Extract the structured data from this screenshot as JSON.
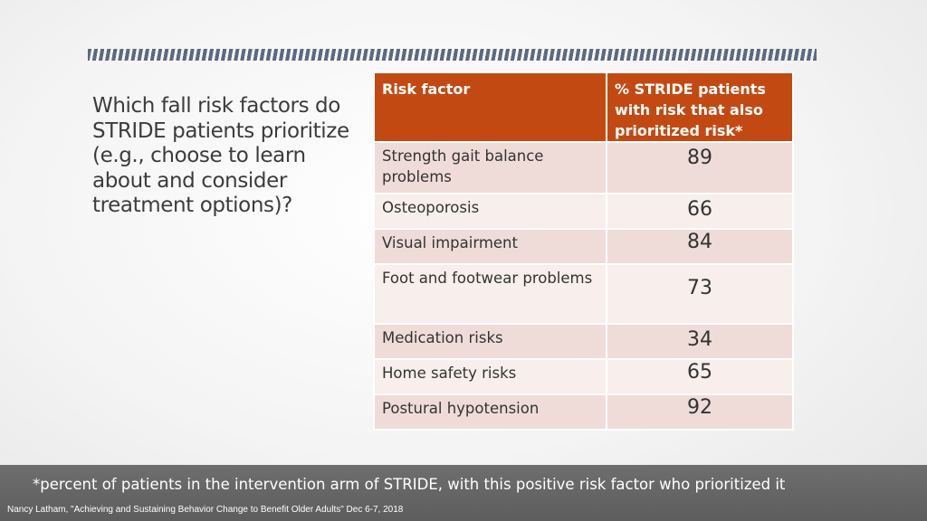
{
  "question": "Which fall risk factors do STRIDE patients prioritize (e.g., choose to learn about and consider treatment options)?",
  "table": {
    "headers": [
      "Risk factor",
      "% STRIDE patients with risk that also prioritized risk*"
    ],
    "rows": [
      {
        "factor": "Strength gait balance problems",
        "value": "89"
      },
      {
        "factor": "Osteoporosis",
        "value": "66"
      },
      {
        "factor": "Visual impairment",
        "value": "84"
      },
      {
        "factor": "Foot and footwear problems",
        "value": "73"
      },
      {
        "factor": "Medication risks",
        "value": "34"
      },
      {
        "factor": "Home safety risks",
        "value": "65"
      },
      {
        "factor": "Postural hypotension",
        "value": "92"
      }
    ]
  },
  "footnote": "*percent of patients in the intervention arm of STRIDE, with this positive risk factor who prioritized it",
  "citation": "Nancy Latham, \"Achieving and Sustaining Behavior Change to Benefit Older Adults\" Dec 6-7, 2018",
  "colors": {
    "header": "#c24a12",
    "row_odd": "#efdcd8",
    "row_even": "#f8eeec",
    "accent_bar": "#5a6a80"
  }
}
